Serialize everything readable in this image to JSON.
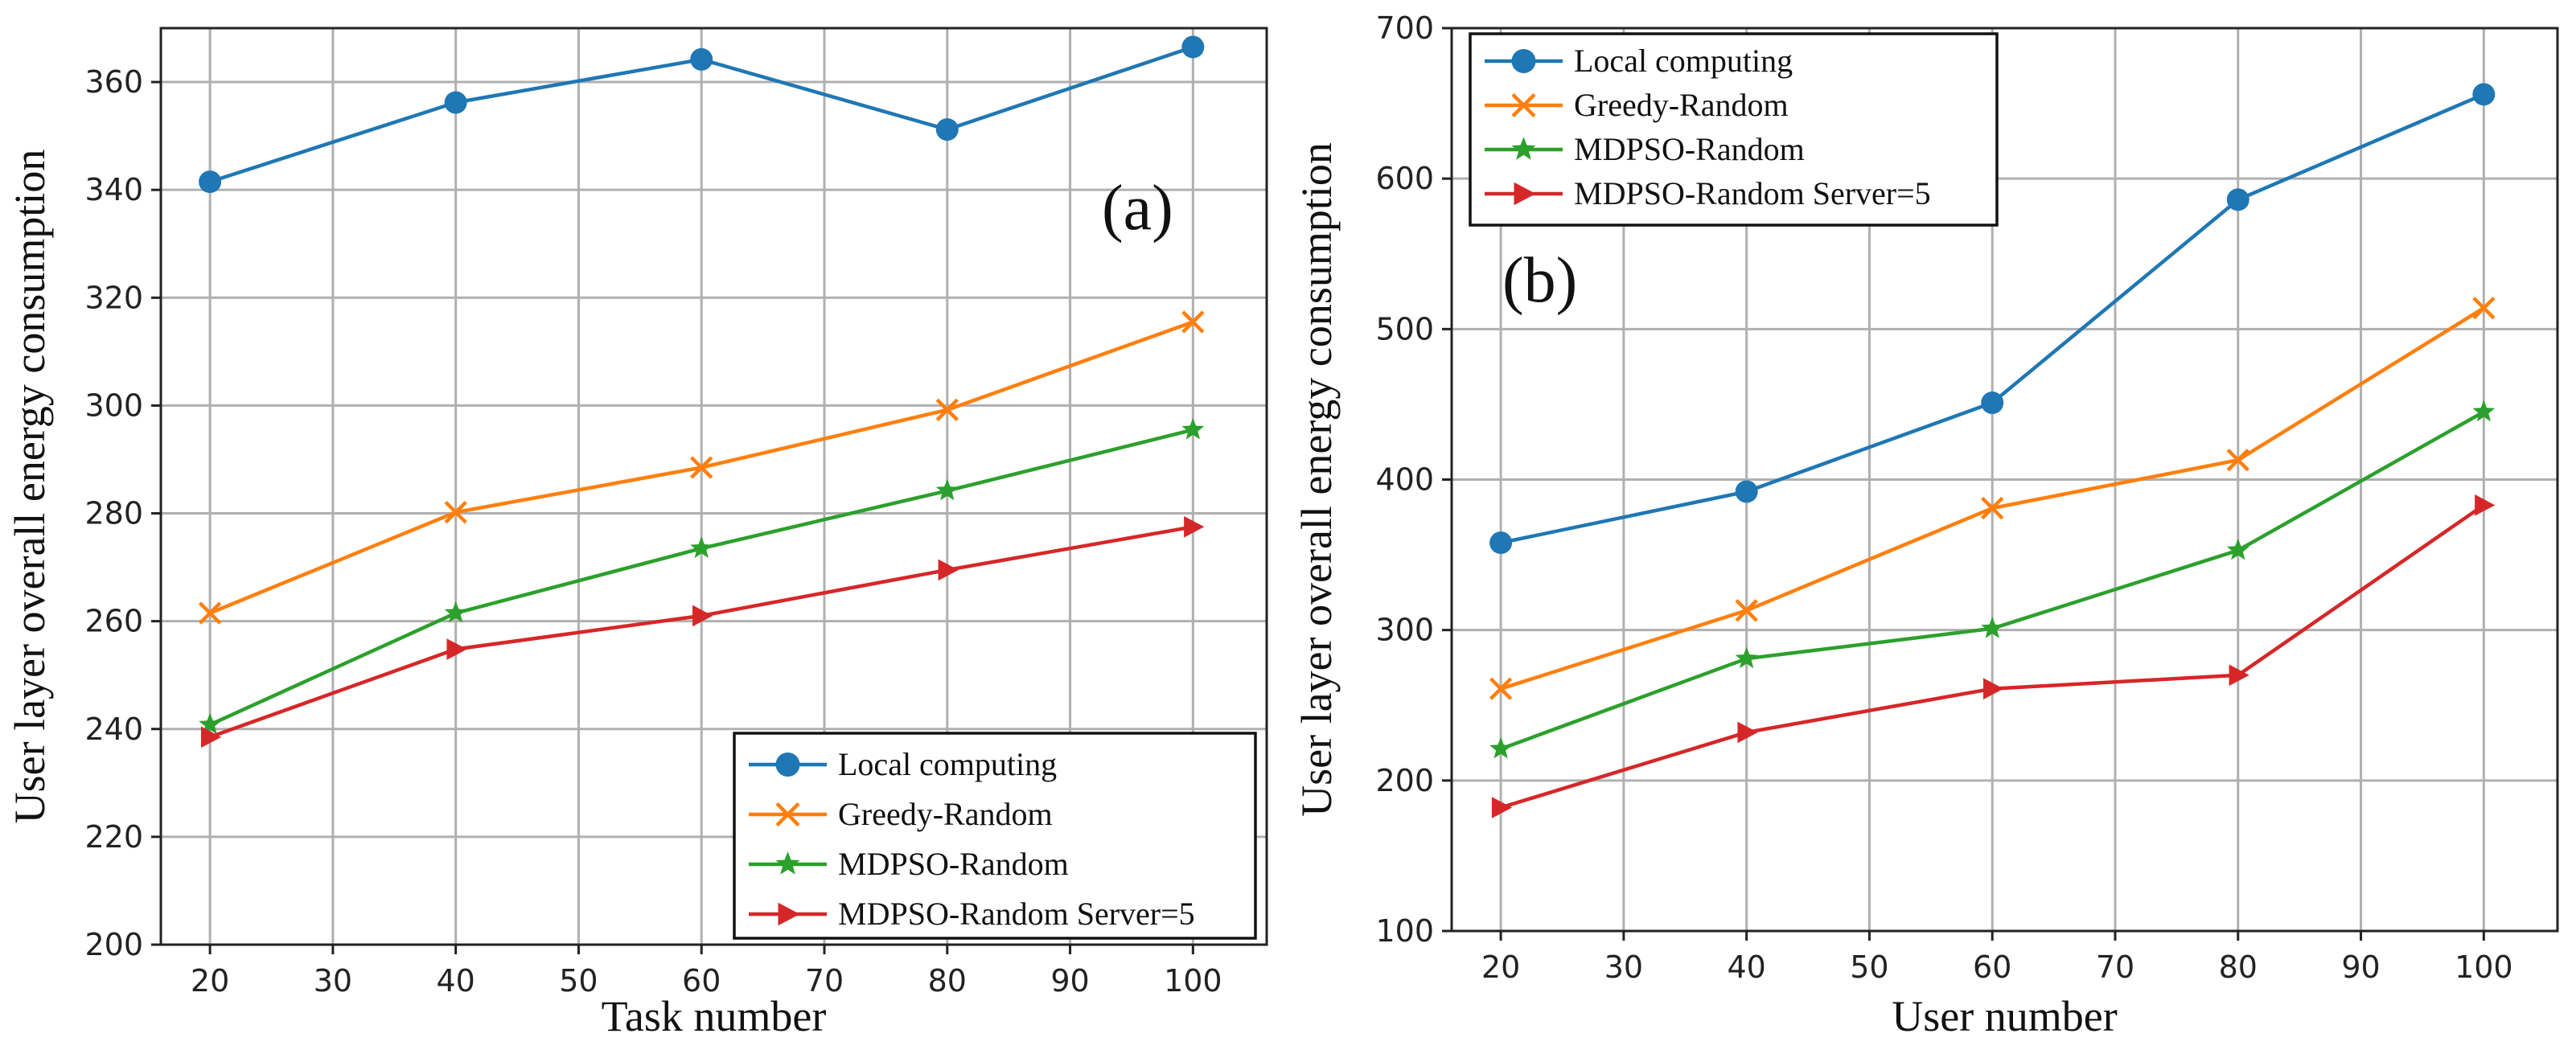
{
  "chart_data": [
    {
      "type": "line",
      "panel_label": "(a)",
      "xlabel": "Task number",
      "ylabel": "User layer overall energy consumption",
      "xlim": [
        16,
        106
      ],
      "ylim": [
        200,
        370
      ],
      "xticks": [
        20,
        30,
        40,
        50,
        60,
        70,
        80,
        90,
        100
      ],
      "yticks": [
        200,
        220,
        240,
        260,
        280,
        300,
        320,
        340,
        360
      ],
      "grid": true,
      "legend_position": "lower-right",
      "x": [
        20,
        40,
        60,
        80,
        100
      ],
      "series": [
        {
          "name": "Local computing",
          "color": "#1f77b4",
          "marker": "circle",
          "values": [
            341.5,
            356.2,
            364.2,
            351.2,
            366.5
          ]
        },
        {
          "name": "Greedy-Random",
          "color": "#ff7f0e",
          "marker": "x",
          "values": [
            261.5,
            280.2,
            288.5,
            299.2,
            315.5
          ]
        },
        {
          "name": "MDPSO-Random",
          "color": "#2ca02c",
          "marker": "star",
          "values": [
            240.8,
            261.5,
            273.5,
            284.2,
            295.5
          ]
        },
        {
          "name": "MDPSO-Random Server=5",
          "color": "#d62728",
          "marker": "triangle-right",
          "values": [
            238.5,
            254.8,
            261.0,
            269.5,
            277.5
          ]
        }
      ]
    },
    {
      "type": "line",
      "panel_label": "(b)",
      "xlabel": "User number",
      "ylabel": "User layer overall energy consumption",
      "xlim": [
        16,
        106
      ],
      "ylim": [
        100,
        700
      ],
      "xticks": [
        20,
        30,
        40,
        50,
        60,
        70,
        80,
        90,
        100
      ],
      "yticks": [
        100,
        200,
        300,
        400,
        500,
        600,
        700
      ],
      "grid": true,
      "legend_position": "upper-left",
      "x": [
        20,
        40,
        60,
        80,
        100
      ],
      "series": [
        {
          "name": "Local computing",
          "color": "#1f77b4",
          "marker": "circle",
          "values": [
            358,
            392,
            451,
            586,
            656
          ]
        },
        {
          "name": "Greedy-Random",
          "color": "#ff7f0e",
          "marker": "x",
          "values": [
            261,
            313,
            381,
            413,
            514
          ]
        },
        {
          "name": "MDPSO-Random",
          "color": "#2ca02c",
          "marker": "star",
          "values": [
            221,
            281,
            301,
            353,
            445
          ]
        },
        {
          "name": "MDPSO-Random Server=5",
          "color": "#d62728",
          "marker": "triangle-right",
          "values": [
            182,
            232,
            261,
            270,
            383
          ]
        }
      ]
    }
  ]
}
